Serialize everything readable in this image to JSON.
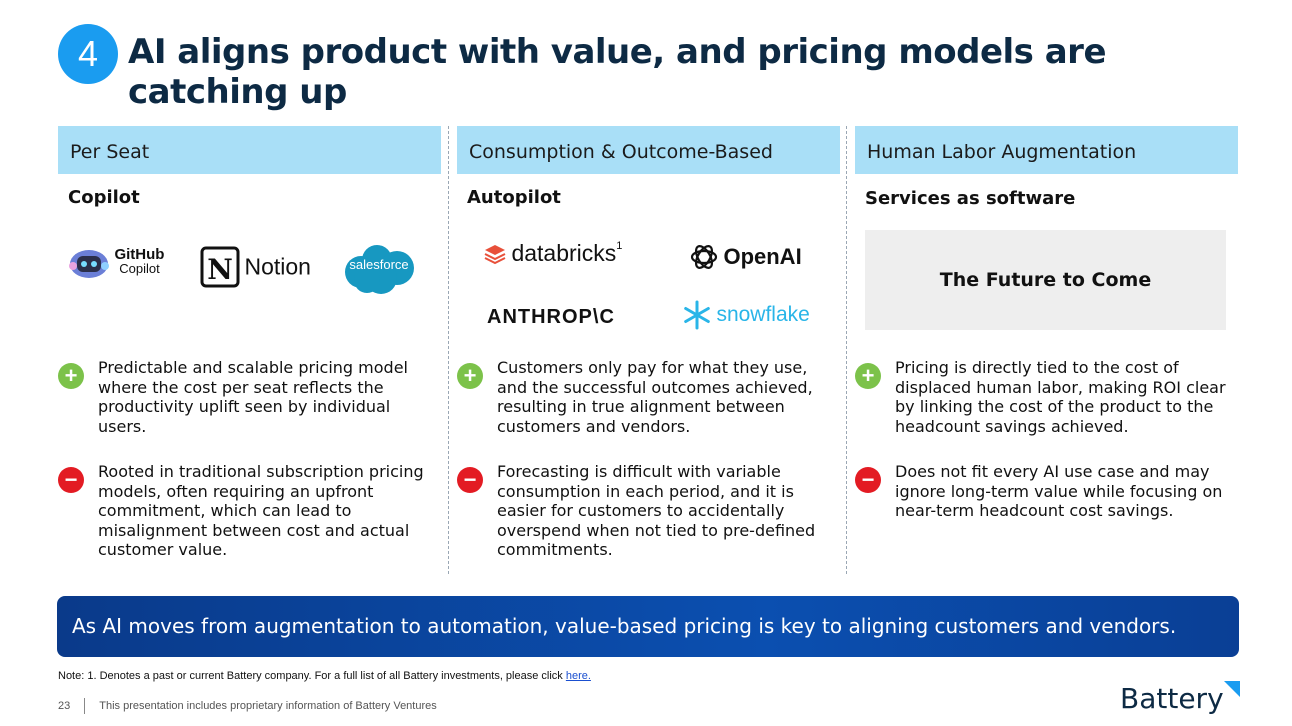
{
  "slide": {
    "number": "4",
    "title": "AI aligns product with value, and pricing models are catching up"
  },
  "columns": [
    {
      "header": "Per Seat",
      "subtitle": "Copilot",
      "logos": [
        "GitHub",
        "Copilot",
        "Notion",
        "salesforce"
      ],
      "pro": "Predictable and scalable pricing model where the cost per seat reflects the productivity uplift seen by individual users.",
      "con": "Rooted in traditional subscription pricing models, often requiring an upfront commitment, which can lead to misalignment between cost and actual customer value."
    },
    {
      "header": "Consumption & Outcome-Based",
      "subtitle": "Autopilot",
      "logos": [
        "databricks",
        "1",
        "OpenAI",
        "ANTHROP\\C",
        "snowflake"
      ],
      "pro": "Customers only pay for what they use, and the successful outcomes achieved, resulting in true alignment between customers and vendors.",
      "con": "Forecasting is difficult with variable consumption in each period, and it is easier for customers to accidentally overspend when not tied to pre-defined commitments."
    },
    {
      "header": "Human Labor Augmentation",
      "subtitle": "Services as software",
      "future_box": "The Future to Come",
      "pro": "Pricing is directly tied to the cost of displaced human labor, making ROI clear by linking the cost of the product to the headcount savings achieved.",
      "con": "Does not fit every AI use case and may ignore long-term value while focusing on near-term headcount cost savings."
    }
  ],
  "banner": "As AI moves from augmentation to automation, value-based pricing is key to aligning customers and vendors.",
  "note": {
    "text": "Note: 1. Denotes a past or current Battery company. For a full list of all Battery investments, please click ",
    "link": "here."
  },
  "footer": {
    "page_number": "23",
    "text": "This presentation includes proprietary information of Battery Ventures"
  },
  "brand": "Battery",
  "icons": {
    "pro": "plus-icon",
    "con": "minus-icon"
  },
  "colors": {
    "accent": "#1a9cf0",
    "header_bg": "#a9dff7",
    "pro": "#7cc24a",
    "con": "#e31b23",
    "banner": "#0b4fb0"
  }
}
